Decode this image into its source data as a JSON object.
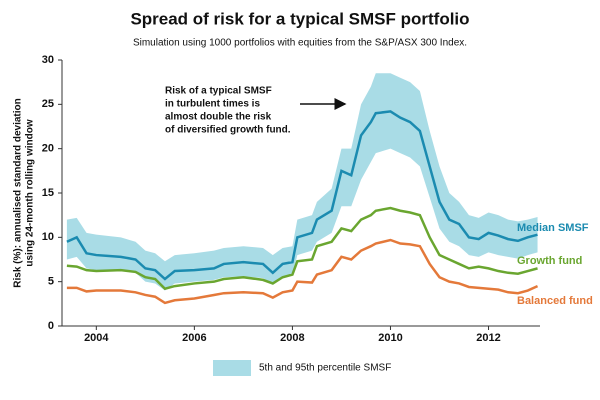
{
  "chart_data": {
    "type": "line",
    "title": "Spread of risk for a typical SMSF portfolio",
    "subtitle": "Simulation using 1000 portfolios with equities from the S&P/ASX 300 Index.",
    "ylabel": [
      "Risk (%): annualised standard deviation",
      "using 24-month rolling window"
    ],
    "annotation": [
      "Risk of a typical SMSF",
      "in turbulent times is",
      "almost double the risk",
      "of diversified growth fund."
    ],
    "x": [
      2003.4,
      2003.6,
      2003.8,
      2004.0,
      2004.5,
      2004.8,
      2005.0,
      2005.2,
      2005.4,
      2005.6,
      2006.0,
      2006.4,
      2006.6,
      2007.0,
      2007.4,
      2007.6,
      2007.8,
      2008.0,
      2008.1,
      2008.4,
      2008.5,
      2008.8,
      2009.0,
      2009.2,
      2009.4,
      2009.6,
      2009.7,
      2010.0,
      2010.2,
      2010.4,
      2010.6,
      2010.8,
      2011.0,
      2011.2,
      2011.4,
      2011.6,
      2011.8,
      2012.0,
      2012.2,
      2012.4,
      2012.6,
      2012.8,
      2013.0
    ],
    "band": {
      "name": "5th and 95th percentile SMSF",
      "color": "#a9dce6",
      "high": [
        12,
        12.2,
        10.5,
        10.3,
        10,
        9.5,
        8.5,
        8.2,
        7.3,
        8,
        8.2,
        8.5,
        8.8,
        9,
        8.8,
        8,
        8.8,
        9,
        12,
        12.5,
        14,
        15.5,
        20,
        20,
        25,
        27,
        28.5,
        28.5,
        28,
        27.5,
        26.5,
        22,
        18,
        15,
        14,
        12.5,
        12.2,
        12.8,
        12.5,
        12,
        11.8,
        12,
        12.3
      ],
      "low": [
        7.5,
        7.8,
        6.5,
        6.3,
        6.2,
        6,
        5,
        4.8,
        4,
        4.8,
        5,
        5.2,
        5.5,
        5.6,
        5.4,
        4.8,
        5.5,
        5.7,
        8,
        8.5,
        9.5,
        10.5,
        13.5,
        13.5,
        16.5,
        18.5,
        19.5,
        20,
        19.5,
        19,
        18,
        14.5,
        11,
        9.5,
        9,
        8,
        7.8,
        8.3,
        8,
        7.8,
        7.6,
        8,
        8.3
      ]
    },
    "series": [
      {
        "name": "Median SMSF",
        "color": "#1b8bb0",
        "values": [
          9.5,
          10,
          8.2,
          8,
          7.8,
          7.5,
          6.5,
          6.3,
          5.3,
          6.2,
          6.3,
          6.5,
          7,
          7.2,
          7,
          6,
          7,
          7.2,
          10,
          10.5,
          12,
          13,
          17.5,
          17,
          21.5,
          23,
          24,
          24.2,
          23.5,
          23,
          22,
          18,
          14,
          12,
          11.5,
          10,
          9.8,
          10.5,
          10.2,
          9.8,
          9.6,
          10,
          10.3
        ]
      },
      {
        "name": "Growth fund",
        "color": "#6aa630",
        "values": [
          6.8,
          6.7,
          6.3,
          6.2,
          6.3,
          6.1,
          5.5,
          5.3,
          4.2,
          4.5,
          4.8,
          5,
          5.3,
          5.5,
          5.2,
          4.8,
          5.5,
          5.8,
          7.3,
          7.5,
          9,
          9.5,
          11,
          10.7,
          12,
          12.5,
          13,
          13.3,
          13,
          12.8,
          12.5,
          10,
          8,
          7.5,
          7,
          6.5,
          6.7,
          6.5,
          6.2,
          6,
          5.9,
          6.2,
          6.5
        ]
      },
      {
        "name": "Balanced fund",
        "color": "#e4793a",
        "values": [
          4.3,
          4.3,
          3.9,
          4,
          4,
          3.8,
          3.5,
          3.3,
          2.6,
          2.9,
          3.1,
          3.5,
          3.7,
          3.8,
          3.7,
          3.2,
          3.8,
          4,
          5,
          4.9,
          5.8,
          6.3,
          7.8,
          7.5,
          8.5,
          9,
          9.3,
          9.7,
          9.3,
          9.2,
          9,
          7,
          5.5,
          5,
          4.8,
          4.4,
          4.3,
          4.2,
          4.1,
          3.8,
          3.7,
          4,
          4.5
        ]
      }
    ],
    "xlim": [
      2003.3,
      2013.05
    ],
    "xticks": [
      2004,
      2006,
      2008,
      2010,
      2012
    ],
    "ylim": [
      0,
      30
    ],
    "yticks": [
      0,
      5,
      10,
      15,
      20,
      25,
      30
    ]
  }
}
